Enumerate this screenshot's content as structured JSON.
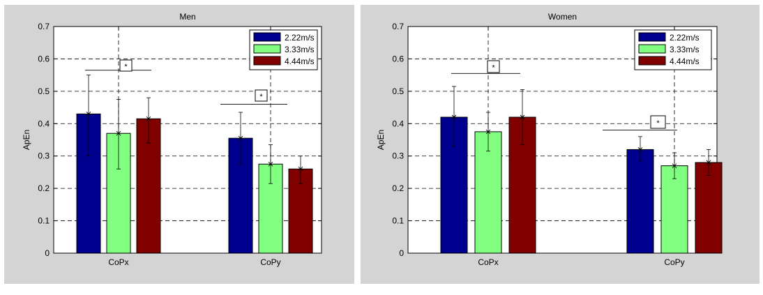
{
  "chart_data": [
    {
      "type": "bar",
      "title": "Men",
      "ylabel": "ApEn",
      "xlabel": "",
      "ylim": [
        0,
        0.7
      ],
      "yticks": [
        0,
        0.1,
        0.2,
        0.3,
        0.4,
        0.5,
        0.6,
        0.7
      ],
      "ytick_labels": [
        "0",
        "0.1",
        "0.2",
        "0.3",
        "0.4",
        "0.5",
        "0.6",
        "0.7"
      ],
      "categories": [
        "CoPx",
        "CoPy"
      ],
      "series": [
        {
          "name": "2.22m/s",
          "color": "#00008f",
          "values": [
            0.43,
            0.355
          ],
          "err_low": [
            0.3,
            0.275
          ],
          "err_high": [
            0.55,
            0.435
          ]
        },
        {
          "name": "3.33m/s",
          "color": "#80ff80",
          "values": [
            0.37,
            0.275
          ],
          "err_low": [
            0.26,
            0.215
          ],
          "err_high": [
            0.475,
            0.335
          ]
        },
        {
          "name": "4.44m/s",
          "color": "#800000",
          "values": [
            0.415,
            0.26
          ],
          "err_low": [
            0.34,
            0.215
          ],
          "err_high": [
            0.48,
            0.3
          ]
        }
      ],
      "significance": [
        {
          "label": "*",
          "y": 0.565
        },
        {
          "label": "*",
          "y": 0.46
        }
      ],
      "grid": true,
      "legend_position": "top-right"
    },
    {
      "type": "bar",
      "title": "Women",
      "ylabel": "ApEn",
      "xlabel": "",
      "ylim": [
        0,
        0.7
      ],
      "yticks": [
        0,
        0.1,
        0.2,
        0.3,
        0.4,
        0.5,
        0.6,
        0.7
      ],
      "ytick_labels": [
        "0",
        "0.1",
        "0.2",
        "0.3",
        "0.4",
        "0.5",
        "0.6",
        "0.7"
      ],
      "categories": [
        "CoPx",
        "CoPy"
      ],
      "series": [
        {
          "name": "2.22m/s",
          "color": "#00008f",
          "values": [
            0.42,
            0.32
          ],
          "err_low": [
            0.33,
            0.285
          ],
          "err_high": [
            0.515,
            0.36
          ]
        },
        {
          "name": "3.33m/s",
          "color": "#80ff80",
          "values": [
            0.375,
            0.27
          ],
          "err_low": [
            0.315,
            0.23
          ],
          "err_high": [
            0.435,
            0.31
          ]
        },
        {
          "name": "4.44m/s",
          "color": "#800000",
          "values": [
            0.42,
            0.28
          ],
          "err_low": [
            0.335,
            0.24
          ],
          "err_high": [
            0.505,
            0.32
          ]
        }
      ],
      "significance": [
        {
          "label": "*",
          "y": 0.555
        },
        {
          "label": "*",
          "y": 0.38
        }
      ],
      "grid": true,
      "legend_position": "top-right"
    }
  ]
}
